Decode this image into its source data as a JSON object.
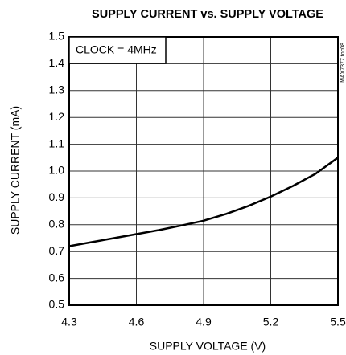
{
  "chart_data": {
    "type": "line",
    "title": "SUPPLY CURRENT vs. SUPPLY VOLTAGE",
    "xlabel": "SUPPLY VOLTAGE (V)",
    "ylabel": "SUPPLY CURRENT (mA)",
    "annotation": "CLOCK = 4MHz",
    "side_note": "MAX7377 toc08",
    "x": [
      4.3,
      4.4,
      4.5,
      4.6,
      4.7,
      4.8,
      4.9,
      5.0,
      5.1,
      5.2,
      5.3,
      5.4,
      5.5
    ],
    "series": [
      {
        "name": "CLOCK = 4MHz",
        "color": "#000000",
        "values": [
          0.72,
          0.735,
          0.75,
          0.765,
          0.78,
          0.797,
          0.815,
          0.84,
          0.87,
          0.905,
          0.945,
          0.99,
          1.05
        ]
      }
    ],
    "xlim": [
      4.3,
      5.5
    ],
    "xticks": [
      4.3,
      4.6,
      4.9,
      5.2,
      5.5
    ],
    "ylim": [
      0.5,
      1.5
    ],
    "yticks": [
      0.5,
      0.6,
      0.7,
      0.8,
      0.9,
      {
        "value": 1,
        "label": "1.0"
      },
      1.1,
      1.2,
      1.3,
      1.4,
      1.5
    ],
    "grid": true
  }
}
